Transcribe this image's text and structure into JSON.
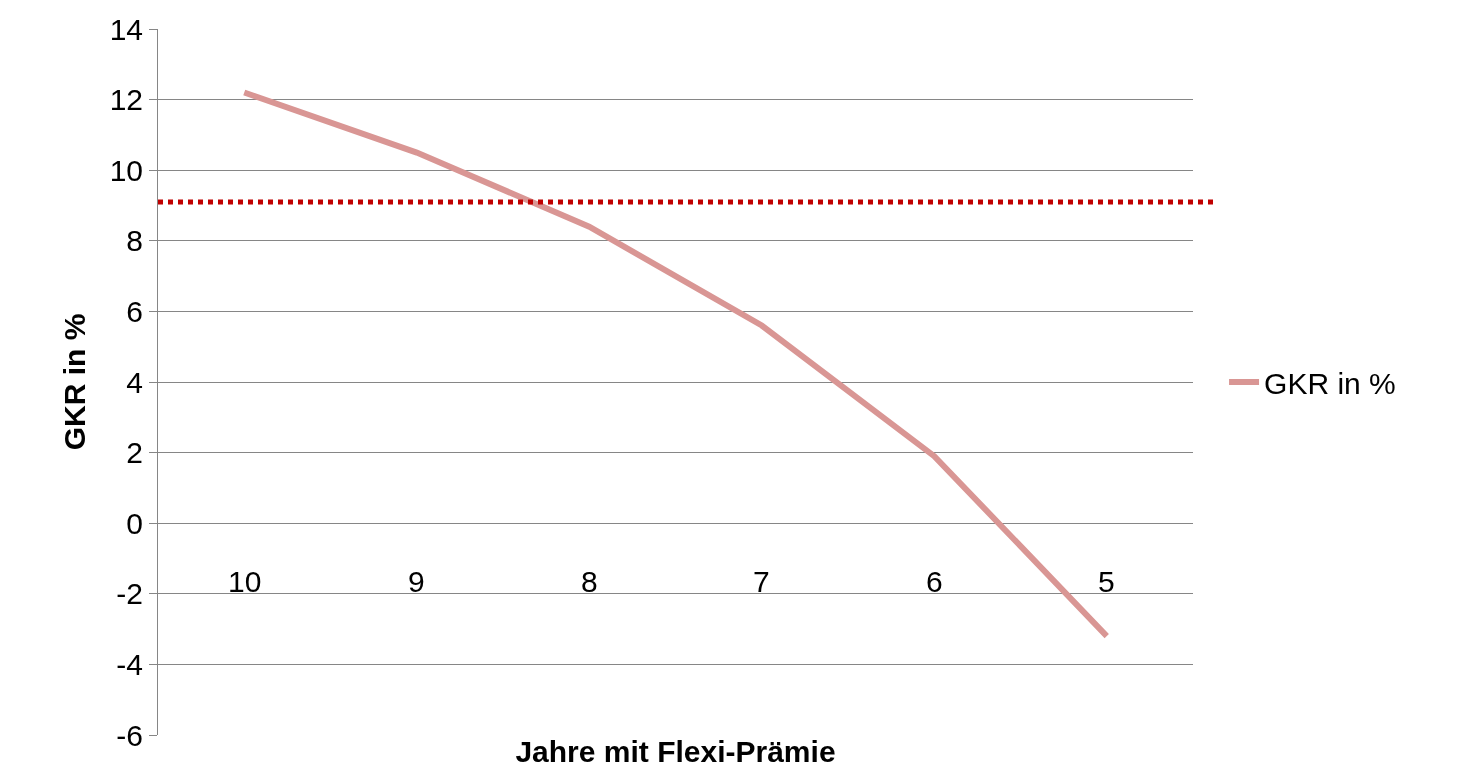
{
  "chart_data": {
    "type": "line",
    "xlabel": "Jahre mit Flexi-Prämie",
    "ylabel": "GKR in %",
    "categories": [
      "10",
      "9",
      "8",
      "7",
      "6",
      "5"
    ],
    "series": [
      {
        "name": "GKR in %",
        "color": "#d99694",
        "values": [
          12.2,
          10.5,
          8.4,
          5.6,
          1.9,
          -3.2
        ]
      }
    ],
    "ylim": [
      -6,
      14
    ],
    "yticks": [
      -6,
      -4,
      -2,
      0,
      2,
      4,
      6,
      8,
      10,
      12,
      14
    ],
    "grid": "y",
    "legend": "right",
    "marker": "none",
    "ref_lines": [
      {
        "axis": "y",
        "value": 9.1,
        "color": "#c00000",
        "line_style": "dotted"
      }
    ]
  }
}
